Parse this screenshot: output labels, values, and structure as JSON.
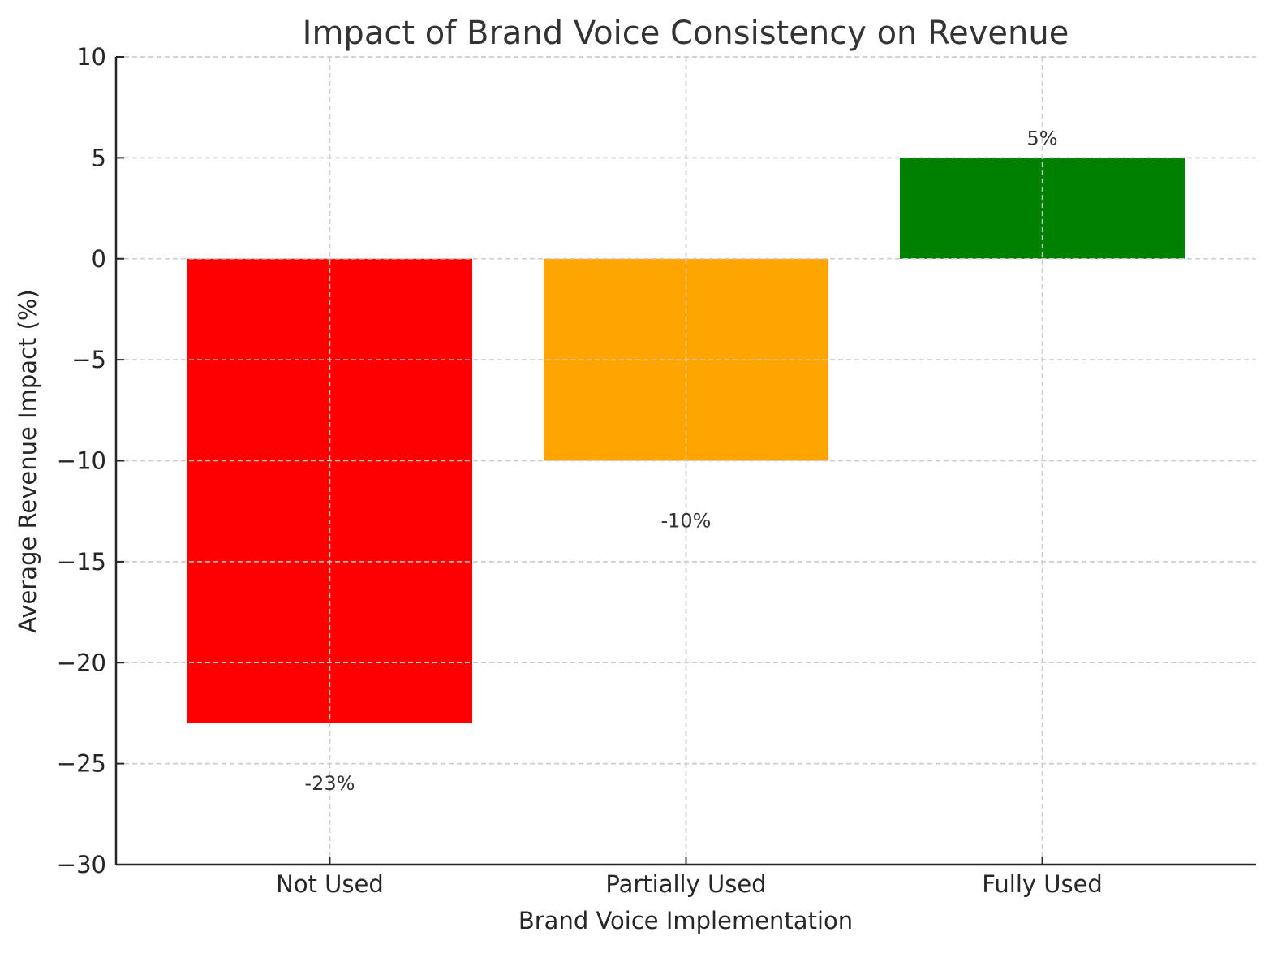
{
  "chart_data": {
    "type": "bar",
    "title": "Impact of Brand Voice Consistency on Revenue",
    "xlabel": "Brand Voice Implementation",
    "ylabel": "Average Revenue Impact (%)",
    "categories": [
      "Not Used",
      "Partially Used",
      "Fully Used"
    ],
    "values": [
      -23,
      -10,
      5
    ],
    "data_labels": [
      "-23%",
      "-10%",
      "5%"
    ],
    "colors": [
      "#ff0000",
      "#ffa500",
      "#008000"
    ],
    "ylim": [
      -30,
      10
    ],
    "yticks": [
      10,
      5,
      0,
      -5,
      -10,
      -15,
      -20,
      -25,
      -30
    ],
    "ytick_labels": [
      "10",
      "5",
      "0",
      "−5",
      "−10",
      "−15",
      "−20",
      "−25",
      "−30"
    ],
    "grid": true,
    "legend": "none"
  }
}
